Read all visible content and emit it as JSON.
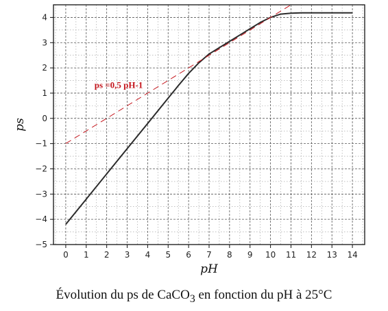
{
  "chart_data": {
    "type": "line",
    "xlabel": "pH",
    "ylabel": "ps",
    "xlim": [
      -0.6,
      14.6
    ],
    "ylim": [
      -5,
      4.5
    ],
    "xticks": [
      0,
      1,
      2,
      3,
      4,
      5,
      6,
      7,
      8,
      9,
      10,
      11,
      12,
      13,
      14
    ],
    "yticks": [
      -5,
      -4,
      -3,
      -2,
      -1,
      0,
      1,
      2,
      3,
      4
    ],
    "grid": true,
    "series": [
      {
        "color": "#2b2b2b",
        "style": "solid",
        "x": [
          0,
          1,
          2,
          3,
          4,
          5,
          5.5,
          6,
          6.5,
          7,
          7.5,
          8,
          8.5,
          9,
          9.5,
          10,
          10.5,
          11,
          11.5,
          12,
          13,
          14
        ],
        "y": [
          -4.2,
          -3.2,
          -2.2,
          -1.2,
          -0.2,
          0.8,
          1.3,
          1.78,
          2.2,
          2.55,
          2.8,
          3.05,
          3.3,
          3.55,
          3.8,
          4.0,
          4.13,
          4.17,
          4.18,
          4.18,
          4.18,
          4.18
        ]
      },
      {
        "color": "#c4141b",
        "style": "dashed",
        "x": [
          0,
          11
        ],
        "y": [
          -1,
          4.5
        ]
      }
    ],
    "annotations": [
      {
        "text": "ps =0,5 pH-1",
        "x": 1.4,
        "y": 1.2
      }
    ]
  },
  "caption": {
    "pre": "Évolution du ps de CaCO",
    "sub": "3",
    "post": " en fonction du pH à 25°C"
  }
}
